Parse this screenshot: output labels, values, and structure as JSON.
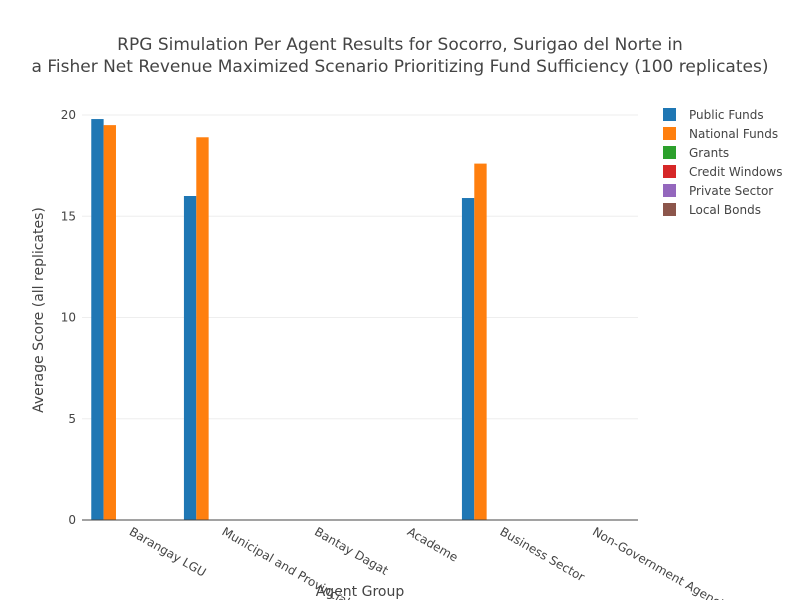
{
  "chart_data": {
    "type": "bar",
    "title_lines": [
      "RPG Simulation Per Agent Results for Socorro, Surigao del Norte in",
      "a Fisher Net Revenue Maximized Scenario Prioritizing Fund Sufficiency (100 replicates)"
    ],
    "xlabel": "Agent Group",
    "ylabel": "Average Score (all replicates)",
    "categories": [
      "Barangay LGU",
      "Municipal and Provincial",
      "Bantay Dagat",
      "Academe",
      "Business Sector",
      "Non-Government Agencies"
    ],
    "ylim": [
      0,
      20
    ],
    "yticks": [
      0,
      5,
      10,
      15,
      20
    ],
    "grid": true,
    "legend_position": "top-right",
    "series": [
      {
        "name": "Public Funds",
        "color": "#1f77b4",
        "values": [
          19.8,
          16.0,
          0,
          0,
          15.9,
          0
        ]
      },
      {
        "name": "National Funds",
        "color": "#ff7f0e",
        "values": [
          19.5,
          18.9,
          0,
          0,
          17.6,
          0
        ]
      },
      {
        "name": "Grants",
        "color": "#2ca02c",
        "values": [
          0,
          0,
          0,
          0,
          0,
          0
        ]
      },
      {
        "name": "Credit Windows",
        "color": "#d62728",
        "values": [
          0,
          0,
          0,
          0,
          0,
          0
        ]
      },
      {
        "name": "Private Sector",
        "color": "#9467bd",
        "values": [
          0,
          0,
          0,
          0,
          0,
          0
        ]
      },
      {
        "name": "Local Bonds",
        "color": "#8c564b",
        "values": [
          0,
          0,
          0,
          0,
          0,
          0
        ]
      }
    ]
  }
}
